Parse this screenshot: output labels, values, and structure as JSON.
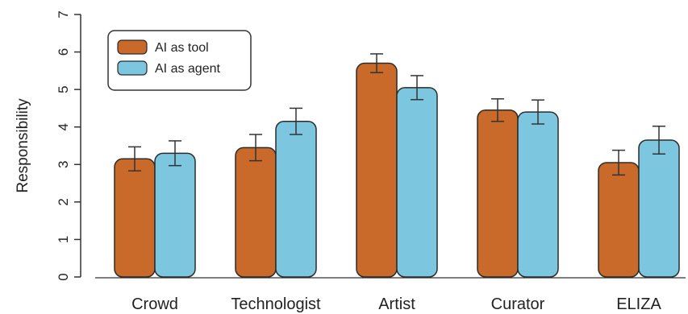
{
  "chart_data": {
    "type": "bar",
    "title": "",
    "xlabel": "",
    "ylabel": "Responsibility",
    "ylim": [
      0,
      7
    ],
    "yticks": [
      "0",
      "1",
      "2",
      "3",
      "4",
      "5",
      "6",
      "7"
    ],
    "categories": [
      "Crowd",
      "Technologist",
      "Artist",
      "Curator",
      "ELIZA"
    ],
    "series": [
      {
        "name": "AI as tool",
        "color": "#c9692a",
        "values": [
          3.15,
          3.45,
          5.7,
          4.45,
          3.05
        ],
        "err": [
          0.32,
          0.35,
          0.25,
          0.3,
          0.33
        ]
      },
      {
        "name": "AI as agent",
        "color": "#7cc6e0",
        "values": [
          3.3,
          4.15,
          5.05,
          4.4,
          3.65
        ],
        "err": [
          0.33,
          0.35,
          0.32,
          0.32,
          0.37
        ]
      }
    ],
    "legend_position": "top-left",
    "grid": false
  }
}
